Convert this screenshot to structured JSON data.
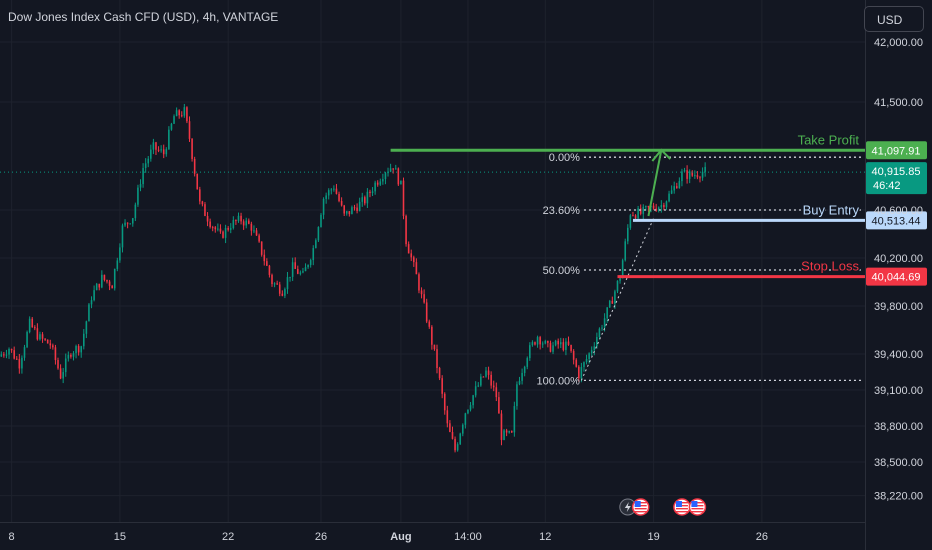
{
  "header": {
    "title": "Dow Jones Index Cash CFD (USD), 4h, VANTAGE",
    "currency_button": "USD"
  },
  "chart_data": {
    "type": "candlestick",
    "title": "Dow Jones Index Cash CFD (USD), 4h, VANTAGE",
    "y_axis": {
      "side": "right",
      "range": [
        38000,
        42350
      ],
      "tick_labels": [
        "42,000.00",
        "41,500.00",
        "40,600.00",
        "40,200.00",
        "39,800.00",
        "39,400.00",
        "39,100.00",
        "38,800.00",
        "38,500.00",
        "38,220.00"
      ],
      "tick_values": [
        42000,
        41500,
        40600,
        40200,
        39800,
        39400,
        39100,
        38800,
        38500,
        38220
      ]
    },
    "x_axis": {
      "tick_labels": [
        "8",
        "15",
        "22",
        "26",
        "Aug",
        "14:00",
        "12",
        "19",
        "26"
      ],
      "tick_index": [
        4,
        46,
        88,
        124,
        155,
        181,
        211,
        253,
        295
      ],
      "range": [
        -0.5,
        335
      ]
    },
    "grid": true,
    "current_price": {
      "label": "40,915.85",
      "countdown": "46:42",
      "value": 40915.85,
      "color": "#089981"
    },
    "levels": [
      {
        "name": "Take Profit",
        "value": 41097.91,
        "label": "41,097.91",
        "color": "#4caf50"
      },
      {
        "name": "Buy Entry",
        "value": 40513.44,
        "label": "40,513.44",
        "color": "#bbd9fb"
      },
      {
        "name": "Stop Loss",
        "value": 40044.69,
        "label": "40,044.69",
        "color": "#f23645"
      }
    ],
    "fibonacci": [
      {
        "label": "0.00%",
        "value": 41040
      },
      {
        "label": "23.60%",
        "value": 40600
      },
      {
        "label": "50.00%",
        "value": 40100
      },
      {
        "label": "100.00%",
        "value": 39180
      }
    ],
    "candle_path": [
      [
        0,
        39380
      ],
      [
        4,
        39450
      ],
      [
        8,
        39320
      ],
      [
        12,
        39650
      ],
      [
        16,
        39530
      ],
      [
        20,
        39480
      ],
      [
        24,
        39220
      ],
      [
        28,
        39420
      ],
      [
        32,
        39470
      ],
      [
        36,
        39880
      ],
      [
        40,
        40030
      ],
      [
        44,
        39980
      ],
      [
        48,
        40450
      ],
      [
        52,
        40550
      ],
      [
        56,
        40950
      ],
      [
        60,
        41120
      ],
      [
        64,
        41070
      ],
      [
        68,
        41380
      ],
      [
        72,
        41420
      ],
      [
        74,
        41200
      ],
      [
        78,
        40650
      ],
      [
        82,
        40500
      ],
      [
        86,
        40380
      ],
      [
        90,
        40480
      ],
      [
        94,
        40520
      ],
      [
        98,
        40460
      ],
      [
        102,
        40250
      ],
      [
        106,
        40000
      ],
      [
        110,
        39930
      ],
      [
        114,
        40120
      ],
      [
        118,
        40050
      ],
      [
        122,
        40280
      ],
      [
        126,
        40700
      ],
      [
        130,
        40800
      ],
      [
        134,
        40550
      ],
      [
        138,
        40620
      ],
      [
        142,
        40680
      ],
      [
        146,
        40820
      ],
      [
        150,
        40930
      ],
      [
        153,
        40970
      ],
      [
        156,
        40800
      ],
      [
        158,
        40350
      ],
      [
        162,
        40050
      ],
      [
        166,
        39700
      ],
      [
        170,
        39300
      ],
      [
        174,
        38800
      ],
      [
        177,
        38600
      ],
      [
        181,
        38920
      ],
      [
        185,
        39100
      ],
      [
        189,
        39250
      ],
      [
        193,
        39050
      ],
      [
        195,
        38720
      ],
      [
        199,
        38720
      ],
      [
        201,
        39150
      ],
      [
        205,
        39400
      ],
      [
        209,
        39550
      ],
      [
        213,
        39450
      ],
      [
        217,
        39480
      ],
      [
        221,
        39460
      ],
      [
        225,
        39230
      ],
      [
        229,
        39400
      ],
      [
        233,
        39600
      ],
      [
        237,
        39800
      ],
      [
        241,
        40050
      ],
      [
        245,
        40580
      ],
      [
        249,
        40570
      ],
      [
        253,
        40620
      ],
      [
        257,
        40640
      ],
      [
        261,
        40750
      ],
      [
        265,
        40900
      ],
      [
        269,
        40890
      ],
      [
        273,
        40920
      ]
    ],
    "candle_count": 274,
    "annotations": {
      "target_arrow": {
        "from": [
          251,
          40550
        ],
        "to": [
          256,
          41100
        ]
      },
      "fib_trend_line": {
        "from": [
          225,
          39180
        ],
        "to": [
          253,
          40530
        ]
      }
    },
    "event_icons": [
      {
        "name": "lightning-icon",
        "x_index": 243
      },
      {
        "name": "us-flag-icon",
        "x_index": 248
      },
      {
        "name": "us-flag-icon",
        "x_index": 264
      },
      {
        "name": "us-flag-icon",
        "x_index": 270
      }
    ],
    "colors": {
      "up": "#089981",
      "down": "#f23645",
      "grid": "#1e222d",
      "axis_text": "#d1d4dc",
      "background": "#131722"
    }
  }
}
